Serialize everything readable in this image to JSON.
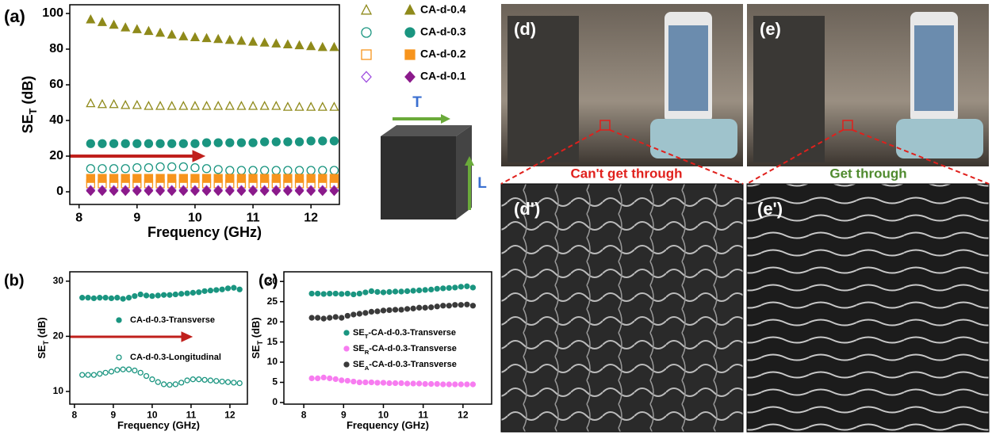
{
  "chart_data": [
    {
      "type": "scatter",
      "panel_label": "(a)",
      "x_label": "Frequency (GHz)",
      "y_label": {
        "main": "SE",
        "sub": "T",
        "unit": " (dB)"
      },
      "xlim": [
        7.84,
        12.49
      ],
      "ylim": [
        -7.1,
        104.9
      ],
      "xticks": [
        8,
        9,
        10,
        11,
        12
      ],
      "yticks": [
        0,
        20,
        40,
        60,
        80,
        100
      ],
      "x": [
        8.2,
        8.4,
        8.6,
        8.8,
        9.0,
        9.2,
        9.4,
        9.6,
        9.8,
        10.0,
        10.2,
        10.4,
        10.6,
        10.8,
        11.0,
        11.2,
        11.4,
        11.6,
        11.8,
        12.0,
        12.2,
        12.4
      ],
      "series": [
        {
          "marker": "triangle",
          "filled": false,
          "color": "#8f8a1b",
          "values": [
            49.5,
            49,
            49,
            48.5,
            48.5,
            48,
            48,
            48,
            48,
            48,
            48,
            48,
            48,
            48,
            48,
            48,
            48,
            47.5,
            47.5,
            47.5,
            47.5,
            47.5
          ]
        },
        {
          "name": "CA-d-0.4",
          "marker": "triangle",
          "filled": true,
          "color": "#8f8a1b",
          "values": [
            96.5,
            95,
            93.5,
            92,
            91,
            90,
            89,
            88,
            87,
            86.5,
            86,
            85.5,
            85,
            84.5,
            84,
            83.5,
            83,
            82.5,
            82,
            81.5,
            81,
            81
          ]
        },
        {
          "marker": "circle",
          "filled": false,
          "color": "#1a9580",
          "values": [
            13,
            13,
            13,
            13,
            13.5,
            13.5,
            14,
            14,
            14,
            13.5,
            13,
            12.5,
            12,
            12,
            12,
            12,
            12,
            12,
            12,
            12,
            12,
            12
          ]
        },
        {
          "name": "CA-d-0.3",
          "marker": "circle",
          "filled": true,
          "color": "#1a9580",
          "values": [
            27,
            27,
            27,
            27,
            27,
            27,
            27,
            27,
            27,
            27,
            27.5,
            27.5,
            27.5,
            27.5,
            27.5,
            28,
            28,
            28,
            28,
            28.5,
            28.5,
            28.5
          ]
        },
        {
          "marker": "square",
          "filled": false,
          "color": "#f7941d",
          "values": [
            4.5,
            4.5,
            4.5,
            4.5,
            4.5,
            4.5,
            4.5,
            4.5,
            4.5,
            4.5,
            4.5,
            4.5,
            4.5,
            4.5,
            4.5,
            4.5,
            4.5,
            4.5,
            4.5,
            4.5,
            4.5,
            4.5
          ]
        },
        {
          "name": "CA-d-0.2",
          "marker": "square",
          "filled": true,
          "color": "#f7941d",
          "values": [
            7.5,
            7.5,
            7.5,
            7.5,
            7.5,
            7.5,
            7.5,
            7.5,
            7.5,
            7.5,
            7.5,
            7.5,
            7.5,
            7.5,
            7.5,
            7.5,
            7.5,
            7.5,
            7.5,
            7.5,
            7.5,
            7.5
          ]
        },
        {
          "marker": "diamond",
          "filled": false,
          "color": "#a050e0",
          "values": [
            1,
            1,
            1,
            1,
            1,
            1,
            1,
            1,
            1,
            1,
            1,
            1,
            1,
            1,
            1,
            1,
            1,
            1,
            1,
            1,
            1,
            1
          ]
        },
        {
          "name": "CA-d-0.1",
          "marker": "diamond",
          "filled": true,
          "color": "#8b1a8b",
          "values": [
            0.5,
            0.5,
            0.5,
            0.5,
            0.5,
            0.5,
            0.5,
            0.5,
            0.5,
            0.5,
            0.5,
            0.5,
            0.5,
            0.5,
            0.5,
            0.5,
            0.5,
            0.5,
            0.5,
            0.5,
            0.5,
            0.5
          ]
        }
      ],
      "cube_labels": [
        "T",
        "L"
      ]
    },
    {
      "type": "scatter",
      "panel_label": "(b)",
      "x_label": "Frequency (GHz)",
      "y_label": {
        "main": "SE",
        "sub": "T",
        "unit": " (dB)"
      },
      "xlim": [
        7.88,
        12.45
      ],
      "ylim": [
        7.7,
        31.7
      ],
      "xticks": [
        8,
        9,
        10,
        11,
        12
      ],
      "yticks": [
        10,
        20,
        30
      ],
      "x": [
        8.2,
        8.35,
        8.5,
        8.65,
        8.8,
        8.95,
        9.1,
        9.25,
        9.4,
        9.55,
        9.7,
        9.85,
        10,
        10.15,
        10.3,
        10.45,
        10.6,
        10.75,
        10.9,
        11.05,
        11.2,
        11.35,
        11.5,
        11.65,
        11.8,
        11.95,
        12.1,
        12.25
      ],
      "series": [
        {
          "name": "CA-d-0.3-Transverse",
          "marker": "circle",
          "filled": true,
          "color": "#1a9580",
          "values": [
            27,
            27,
            26.9,
            27,
            27,
            26.9,
            27,
            26.8,
            27,
            27.3,
            27.6,
            27.4,
            27.3,
            27.4,
            27.5,
            27.5,
            27.6,
            27.7,
            27.8,
            27.9,
            28,
            28.2,
            28.3,
            28.4,
            28.5,
            28.7,
            28.8,
            28.5
          ]
        },
        {
          "name": "CA-d-0.3-Longitudinal",
          "marker": "circle",
          "filled": false,
          "color": "#1a9580",
          "values": [
            13,
            13,
            13,
            13.2,
            13.4,
            13.6,
            13.9,
            14,
            14,
            13.8,
            13.4,
            12.8,
            12.2,
            11.7,
            11.3,
            11.2,
            11.3,
            11.6,
            12,
            12.2,
            12.2,
            12.1,
            12,
            11.9,
            11.8,
            11.7,
            11.6,
            11.5
          ]
        }
      ]
    },
    {
      "type": "scatter",
      "panel_label": "(c)",
      "x_label": "Frequency (GHz)",
      "y_label": {
        "main": "SE",
        "sub": "T",
        "unit": " (dB)"
      },
      "xlim": [
        7.5,
        12.72
      ],
      "ylim": [
        -0.4,
        32.4
      ],
      "xticks": [
        8,
        9,
        10,
        11,
        12
      ],
      "yticks": [
        0,
        5,
        10,
        15,
        20,
        25,
        30
      ],
      "x": [
        8.2,
        8.35,
        8.5,
        8.65,
        8.8,
        8.95,
        9.1,
        9.25,
        9.4,
        9.55,
        9.7,
        9.85,
        10,
        10.15,
        10.3,
        10.45,
        10.6,
        10.75,
        10.9,
        11.05,
        11.2,
        11.35,
        11.5,
        11.65,
        11.8,
        11.95,
        12.1,
        12.25
      ],
      "series": [
        {
          "name": {
            "main": "SE",
            "sub": "T",
            "rest": "-CA-d-0.3-Transverse"
          },
          "marker": "circle",
          "filled": true,
          "color": "#1a9580",
          "values": [
            27,
            27,
            26.9,
            27,
            27,
            26.9,
            27,
            26.8,
            27,
            27.3,
            27.6,
            27.4,
            27.3,
            27.4,
            27.5,
            27.5,
            27.6,
            27.7,
            27.8,
            27.9,
            28,
            28.2,
            28.3,
            28.4,
            28.5,
            28.7,
            28.8,
            28.5
          ]
        },
        {
          "name": {
            "main": "SE",
            "sub": "R",
            "rest": "-CA-d-0.3-Transverse"
          },
          "marker": "circle",
          "filled": true,
          "color": "#f77cf0",
          "values": [
            6,
            6,
            6.2,
            6,
            5.8,
            5.5,
            5.4,
            5.2,
            5,
            5,
            5,
            4.9,
            4.9,
            4.8,
            4.8,
            4.8,
            4.7,
            4.7,
            4.7,
            4.6,
            4.6,
            4.6,
            4.5,
            4.5,
            4.5,
            4.5,
            4.5,
            4.5
          ]
        },
        {
          "name": {
            "main": "SE",
            "sub": "A",
            "rest": "-CA-d-0.3-Transverse"
          },
          "marker": "circle",
          "filled": true,
          "color": "#3a3a3a",
          "values": [
            21,
            21,
            20.8,
            21,
            21.2,
            21,
            21.5,
            21.8,
            22,
            22.2,
            22.5,
            22.6,
            22.8,
            22.9,
            23,
            23,
            23.2,
            23.3,
            23.5,
            23.5,
            23.6,
            23.8,
            24,
            24,
            24.2,
            24.2,
            24.3,
            24
          ]
        }
      ]
    }
  ],
  "photos": {
    "d": "(d)",
    "e": "(e)",
    "d_prime": "(d')",
    "e_prime": "(e')",
    "d_caption": "Can't get through",
    "e_caption": "Get through"
  }
}
